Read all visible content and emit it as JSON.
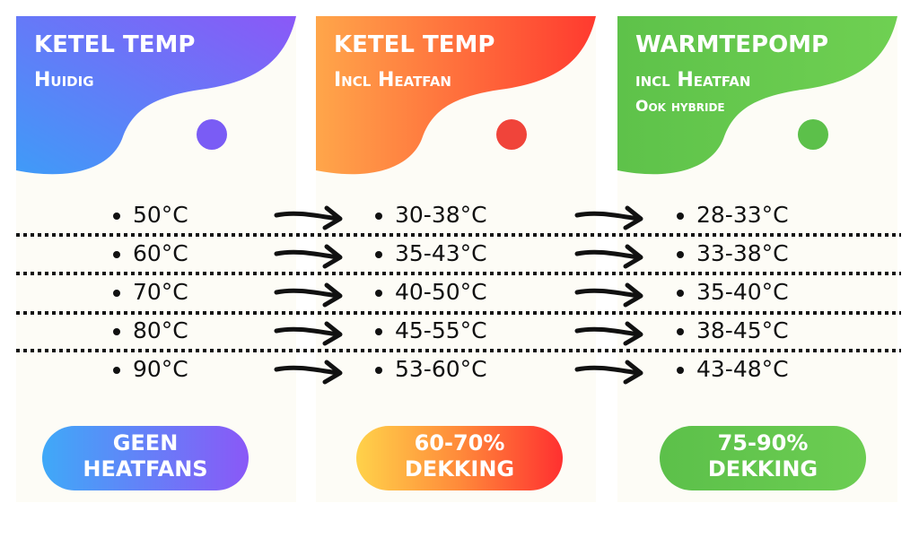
{
  "columns": [
    {
      "title": "KETEL TEMP",
      "subtitle": [
        "Huidig"
      ],
      "rows": [
        "50°C",
        "60°C",
        "70°C",
        "80°C",
        "90°C"
      ],
      "badge": [
        "GEEN",
        "HEATFANS"
      ]
    },
    {
      "title": "KETEL TEMP",
      "subtitle": [
        "Incl Heatfan"
      ],
      "rows": [
        "30-38°C",
        "35-43°C",
        "40-50°C",
        "45-55°C",
        "53-60°C"
      ],
      "badge": [
        "60-70%",
        "DEKKING"
      ]
    },
    {
      "title": "WARMTEPOMP",
      "subtitle": [
        "incl Heatfan",
        "Ook hybride"
      ],
      "rows": [
        "28-33°C",
        "33-38°C",
        "35-40°C",
        "38-45°C",
        "43-48°C"
      ],
      "badge": [
        "75-90%",
        "DEKKING"
      ]
    }
  ]
}
